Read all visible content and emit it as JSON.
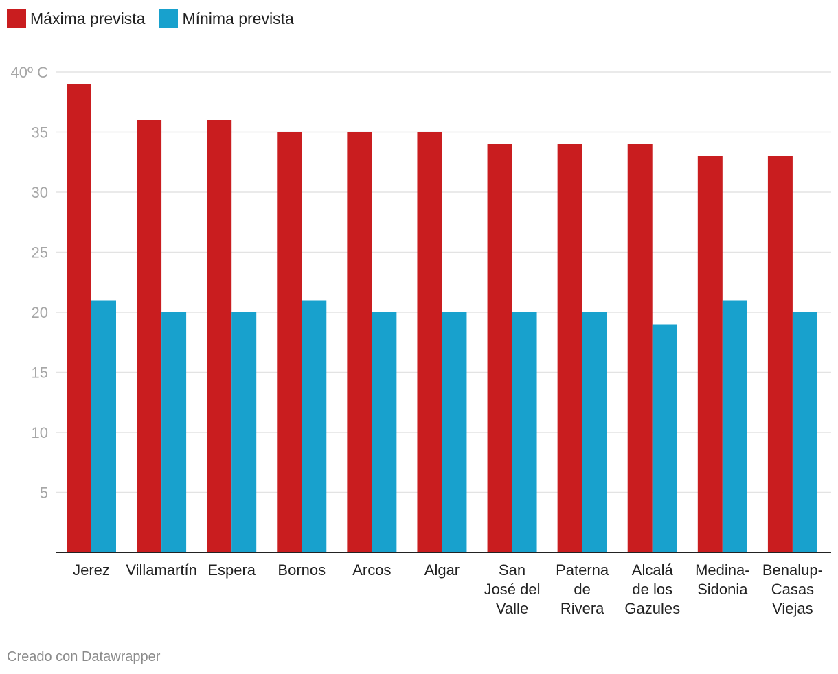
{
  "legend": [
    {
      "label": "Máxima prevista",
      "color": "#c91d1f"
    },
    {
      "label": "Mínima prevista",
      "color": "#18a1cd"
    }
  ],
  "footer": "Creado con Datawrapper",
  "chart_data": {
    "type": "bar",
    "categories": [
      [
        "Jerez"
      ],
      [
        "Villamartín"
      ],
      [
        "Espera"
      ],
      [
        "Bornos"
      ],
      [
        "Arcos"
      ],
      [
        "Algar"
      ],
      [
        "San",
        "José del",
        "Valle"
      ],
      [
        "Paterna",
        "de",
        "Rivera"
      ],
      [
        "Alcalá",
        "de los",
        "Gazules"
      ],
      [
        "Medina-",
        "Sidonia"
      ],
      [
        "Benalup-",
        "Casas",
        "Viejas"
      ]
    ],
    "series": [
      {
        "name": "Máxima prevista",
        "color": "#c91d1f",
        "values": [
          39,
          36,
          36,
          35,
          35,
          35,
          34,
          34,
          34,
          33,
          33
        ]
      },
      {
        "name": "Mínima prevista",
        "color": "#18a1cd",
        "values": [
          21,
          20,
          20,
          21,
          20,
          20,
          20,
          20,
          19,
          21,
          20
        ]
      }
    ],
    "ylim": [
      0,
      40
    ],
    "yticks": [
      5,
      10,
      15,
      20,
      25,
      30,
      35,
      40
    ],
    "ytick_labels": [
      "5",
      "10",
      "15",
      "20",
      "25",
      "30",
      "35",
      "40º C"
    ],
    "grid": true,
    "legend_position": "top-left"
  }
}
